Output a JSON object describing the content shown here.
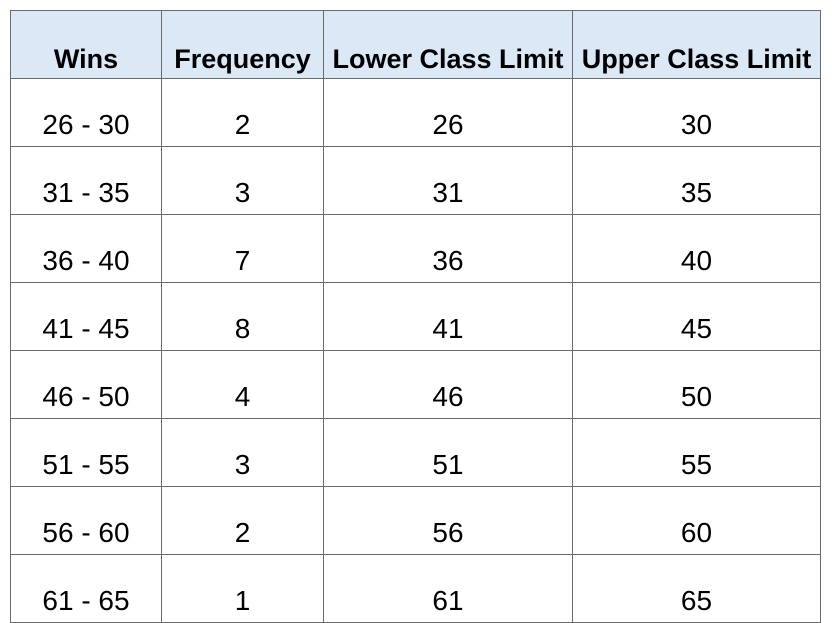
{
  "table": {
    "headers": [
      "Wins",
      "Frequency",
      "Lower Class Limit",
      "Upper Class Limit"
    ],
    "rows": [
      [
        "26 - 30",
        "2",
        "26",
        "30"
      ],
      [
        "31 - 35",
        "3",
        "31",
        "35"
      ],
      [
        "36 - 40",
        "7",
        "36",
        "40"
      ],
      [
        "41 - 45",
        "8",
        "41",
        "45"
      ],
      [
        "46 - 50",
        "4",
        "46",
        "50"
      ],
      [
        "51 - 55",
        "3",
        "51",
        "55"
      ],
      [
        "56 - 60",
        "2",
        "56",
        "60"
      ],
      [
        "61 - 65",
        "1",
        "61",
        "65"
      ]
    ]
  },
  "colors": {
    "header_background": "#dbe8f6",
    "border": "#6b6b6b",
    "text": "#000000"
  }
}
